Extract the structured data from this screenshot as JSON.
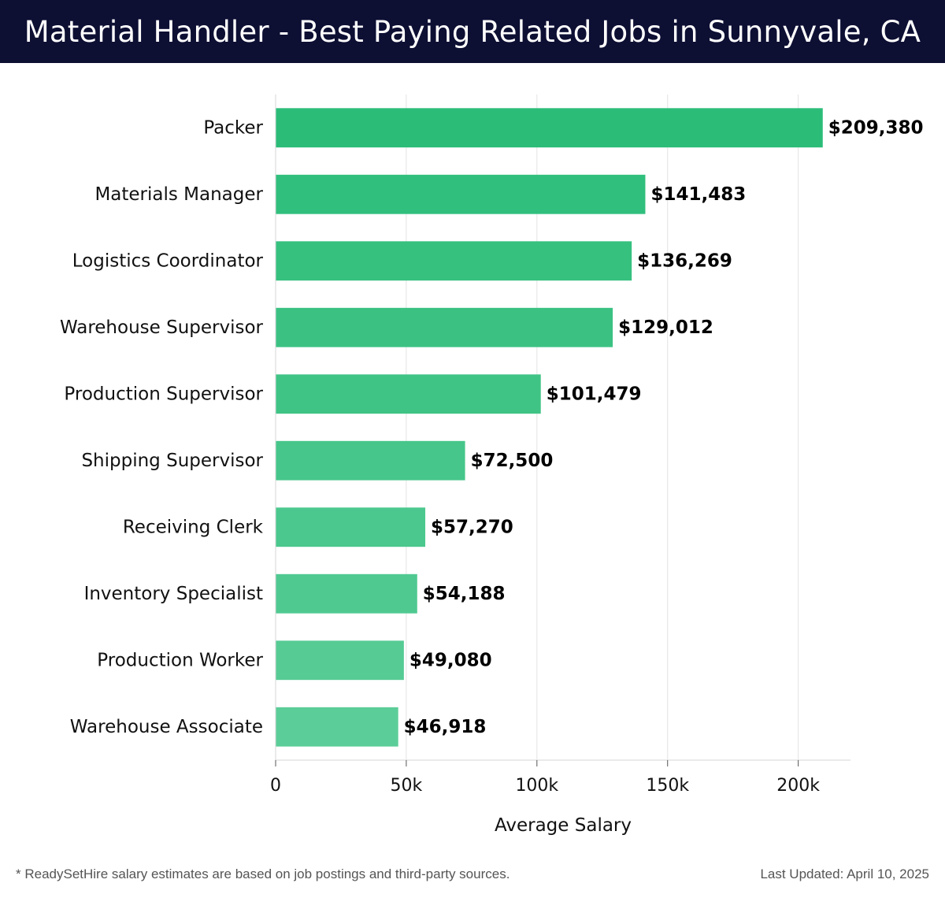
{
  "header": {
    "title": "Material Handler - Best Paying Related Jobs in Sunnyvale, CA"
  },
  "chart_data": {
    "type": "bar",
    "orientation": "horizontal",
    "categories": [
      "Packer",
      "Materials Manager",
      "Logistics Coordinator",
      "Warehouse Supervisor",
      "Production Supervisor",
      "Shipping Supervisor",
      "Receiving Clerk",
      "Inventory Specialist",
      "Production Worker",
      "Warehouse Associate"
    ],
    "values": [
      209380,
      141483,
      136269,
      129012,
      101479,
      72500,
      57270,
      54188,
      49080,
      46918
    ],
    "value_labels": [
      "$209,380",
      "$141,483",
      "$136,269",
      "$129,012",
      "$101,479",
      "$72,500",
      "$57,270",
      "$54,188",
      "$49,080",
      "$46,918"
    ],
    "xlabel": "Average Salary",
    "ylabel": "",
    "xlim": [
      0,
      220000
    ],
    "xticks": [
      0,
      50000,
      100000,
      150000,
      200000
    ],
    "xtick_labels": [
      "0",
      "50k",
      "100k",
      "150k",
      "200k"
    ],
    "grid": true,
    "bar_color_top": "#2bbd78",
    "bar_color_bottom": "#5bcd98"
  },
  "footer": {
    "note": "* ReadySetHire salary estimates are based on job postings and third-party sources.",
    "updated": "Last Updated: April 10, 2025"
  }
}
